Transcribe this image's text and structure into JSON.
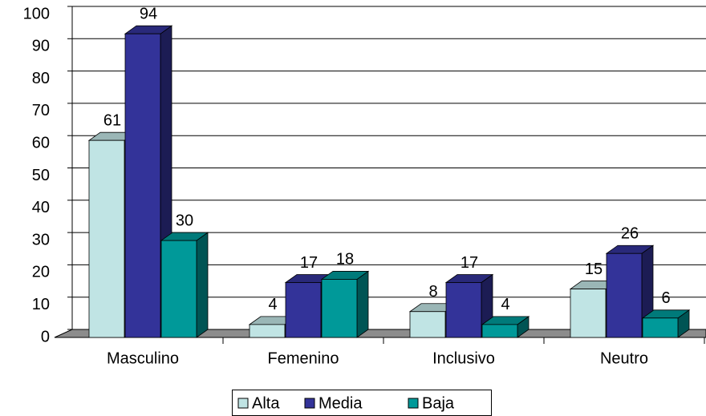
{
  "chart_data": {
    "type": "bar3d",
    "categories": [
      "Masculino",
      "Femenino",
      "Inclusivo",
      "Neutro"
    ],
    "series": [
      {
        "name": "Alta",
        "color": "#c0e4e4",
        "values": [
          61,
          4,
          8,
          15
        ]
      },
      {
        "name": "Media",
        "color": "#333399",
        "values": [
          94,
          17,
          17,
          26
        ]
      },
      {
        "name": "Baja",
        "color": "#009999",
        "values": [
          30,
          18,
          4,
          6
        ]
      }
    ],
    "ylim": [
      0,
      100
    ],
    "yticks": [
      0,
      10,
      20,
      30,
      40,
      50,
      60,
      70,
      80,
      90,
      100
    ],
    "grid": true,
    "legend": "bottom"
  }
}
